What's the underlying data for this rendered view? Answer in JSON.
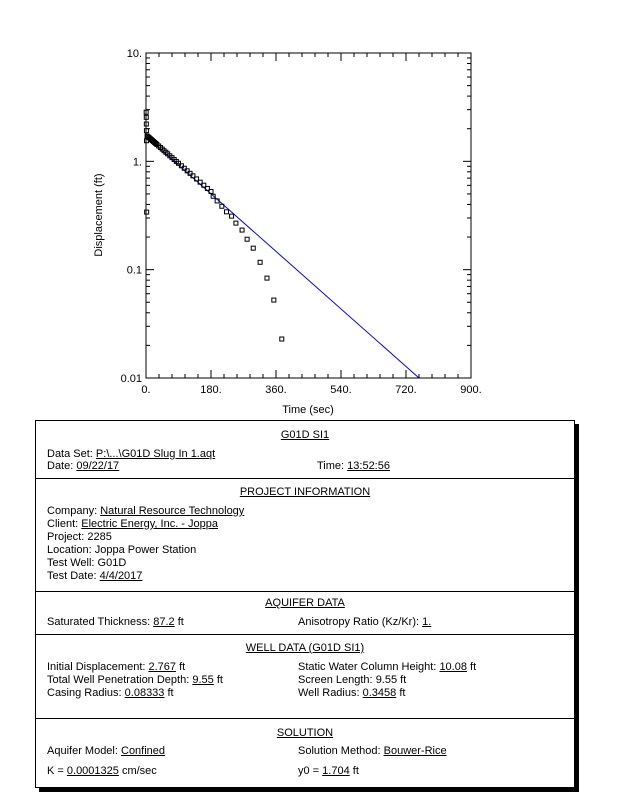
{
  "chart_data": {
    "type": "scatter",
    "xlabel": "Time (sec)",
    "ylabel": "Displacement (ft)",
    "xlim": [
      0,
      900
    ],
    "ylim": [
      0.01,
      10
    ],
    "yscale": "log",
    "xticks": [
      "0.",
      "180.",
      "360.",
      "540.",
      "720.",
      "900."
    ],
    "yticks": [
      "0.01",
      "0.1",
      "1.",
      "10."
    ],
    "xtick_values": [
      0,
      180,
      360,
      540,
      720,
      900
    ],
    "ytick_values": [
      0.01,
      0.1,
      1,
      10
    ],
    "grid": false,
    "observed": {
      "marker": "open-square",
      "color": "#000000",
      "x": [
        0.5,
        0.8,
        1,
        1.2,
        1.5,
        1.8,
        3,
        6,
        9,
        12,
        15,
        18,
        21,
        24,
        27,
        30,
        35,
        40,
        45,
        50,
        55,
        60,
        66,
        72,
        78,
        84,
        90,
        98,
        106,
        114,
        122,
        130,
        140,
        150,
        160,
        170,
        180,
        186,
        197,
        210,
        223,
        237,
        249,
        266,
        280,
        297,
        316,
        335,
        354,
        376
      ],
      "y": [
        2.84,
        2.55,
        2.21,
        1.92,
        1.55,
        0.34,
        1.715,
        1.68,
        1.649,
        1.615,
        1.584,
        1.552,
        1.521,
        1.491,
        1.461,
        1.432,
        1.386,
        1.341,
        1.297,
        1.253,
        1.213,
        1.173,
        1.125,
        1.082,
        1.04,
        0.998,
        0.959,
        0.91,
        0.863,
        0.817,
        0.775,
        0.735,
        0.688,
        0.642,
        0.602,
        0.562,
        0.527,
        0.476,
        0.431,
        0.385,
        0.342,
        0.312,
        0.269,
        0.232,
        0.191,
        0.158,
        0.117,
        0.0836,
        0.0524,
        0.0229
      ]
    },
    "fit": {
      "type": "line",
      "color": "#0000ff",
      "x": [
        0,
        756
      ],
      "y": [
        1.704,
        0.01
      ]
    }
  },
  "report": {
    "title": "G01D SI1",
    "data_set": {
      "label": "Data Set:",
      "value": "P:\\...\\G01D Slug In 1.aqt"
    },
    "date": {
      "label": "Date:",
      "value": "09/22/17"
    },
    "time": {
      "label": "Time:",
      "value": "13:52:56"
    },
    "project": {
      "title": "PROJECT INFORMATION",
      "company": {
        "label": "Company:",
        "value": "Natural Resource Technology"
      },
      "client": {
        "label": "Client:",
        "value": "Electric Energy, Inc. - Joppa"
      },
      "project": {
        "label": "Project:",
        "value": "2285"
      },
      "location": {
        "label": "Location:",
        "value": "Joppa Power Station"
      },
      "test_well": {
        "label": "Test Well:",
        "value": "G01D"
      },
      "test_date": {
        "label": "Test Date:",
        "value": "4/4/2017"
      }
    },
    "aquifer": {
      "title": "AQUIFER DATA",
      "saturated_thickness": {
        "label": "Saturated Thickness:",
        "value": "87.2",
        "unit": "ft"
      },
      "anisotropy": {
        "label": "Anisotropy Ratio (Kz/Kr):",
        "value": "1."
      }
    },
    "well": {
      "title": "WELL DATA (G01D SI1)",
      "initial_displacement": {
        "label": "Initial Displacement:",
        "value": "2.767",
        "unit": "ft"
      },
      "static_water": {
        "label": "Static Water Column Height:",
        "value": "10.08",
        "unit": "ft"
      },
      "penetration": {
        "label": "Total Well Penetration Depth:",
        "value": "9.55",
        "unit": "ft"
      },
      "screen_length": {
        "label": "Screen Length:",
        "value": "9.55",
        "unit": "ft"
      },
      "casing_radius": {
        "label": "Casing Radius:",
        "value": "0.08333",
        "unit": "ft"
      },
      "well_radius": {
        "label": "Well Radius:",
        "value": "0.3458",
        "unit": "ft"
      }
    },
    "solution": {
      "title": "SOLUTION",
      "aquifer_model": {
        "label": "Aquifer Model:",
        "value": "Confined"
      },
      "method": {
        "label": "Solution Method:",
        "value": "Bouwer-Rice"
      },
      "k": {
        "label": "K =",
        "value": "0.0001325",
        "unit": "cm/sec"
      },
      "y0": {
        "label": "y0 =",
        "value": "1.704",
        "unit": "ft"
      }
    }
  }
}
